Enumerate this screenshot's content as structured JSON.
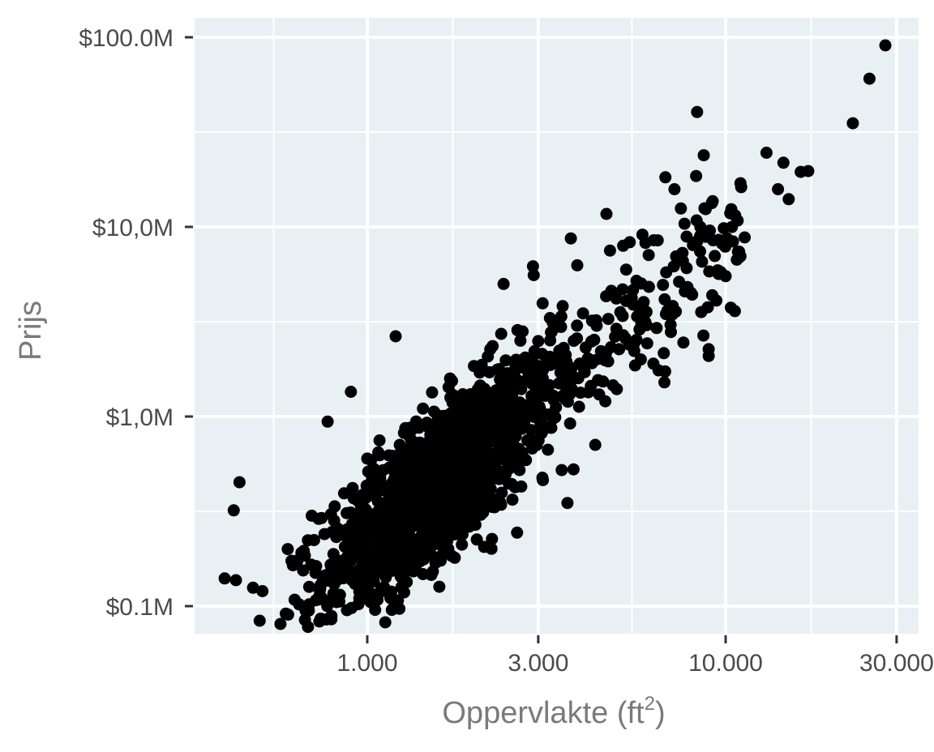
{
  "chart_data": {
    "type": "scatter",
    "title": "",
    "xlabel": "Oppervlakte (ft²)",
    "xlabel_base": "Oppervlakte (ft",
    "xlabel_sup": "2",
    "xlabel_close": ")",
    "ylabel": "Prijs",
    "x_scale": "log10",
    "y_scale": "log10",
    "xlim": [
      330,
      32000
    ],
    "ylim": [
      0.09,
      110
    ],
    "x_ticks": [
      {
        "value": 1000,
        "label": "1.000"
      },
      {
        "value": 3000,
        "label": "3.000"
      },
      {
        "value": 10000,
        "label": "10.000"
      },
      {
        "value": 30000,
        "label": "30.000"
      }
    ],
    "y_ticks": [
      {
        "value": 0.1,
        "label": "$0.1M"
      },
      {
        "value": 1,
        "label": "$1,0M"
      },
      {
        "value": 10,
        "label": "$10,0M"
      },
      {
        "value": 100,
        "label": "$100.0M"
      }
    ],
    "grid": true,
    "legend": null,
    "point_color": "#000000",
    "panel_background": "#e8f0f4",
    "grid_color": "#ffffff",
    "y_units": "million USD",
    "n_points_approx": 1500,
    "trend": "strong positive log-log relationship; price roughly proportional to area^1.3",
    "points_sample": [
      {
        "x": 27900,
        "y": 90.6
      },
      {
        "x": 25200,
        "y": 60.5
      },
      {
        "x": 22650,
        "y": 35.2
      },
      {
        "x": 13000,
        "y": 24.6
      },
      {
        "x": 14500,
        "y": 21.8
      },
      {
        "x": 16200,
        "y": 19.5
      },
      {
        "x": 17000,
        "y": 19.7
      },
      {
        "x": 14000,
        "y": 15.8
      },
      {
        "x": 15000,
        "y": 14.0
      },
      {
        "x": 11000,
        "y": 17.0
      },
      {
        "x": 10300,
        "y": 11.8
      },
      {
        "x": 10800,
        "y": 10.8
      },
      {
        "x": 11300,
        "y": 8.8
      },
      {
        "x": 11000,
        "y": 7.0
      },
      {
        "x": 10000,
        "y": 5.5
      },
      {
        "x": 8500,
        "y": 10.0
      },
      {
        "x": 7200,
        "y": 15.8
      },
      {
        "x": 7500,
        "y": 12.5
      },
      {
        "x": 4650,
        "y": 11.7
      },
      {
        "x": 6300,
        "y": 8.5
      },
      {
        "x": 5400,
        "y": 8.3
      },
      {
        "x": 3700,
        "y": 8.7
      },
      {
        "x": 2900,
        "y": 6.2
      },
      {
        "x": 2400,
        "y": 5.0
      },
      {
        "x": 1200,
        "y": 2.65
      },
      {
        "x": 5800,
        "y": 2.0
      },
      {
        "x": 6500,
        "y": 1.75
      },
      {
        "x": 3620,
        "y": 0.35
      },
      {
        "x": 775,
        "y": 0.94
      },
      {
        "x": 900,
        "y": 1.35
      },
      {
        "x": 440,
        "y": 0.45
      },
      {
        "x": 424,
        "y": 0.32
      },
      {
        "x": 400,
        "y": 0.14
      },
      {
        "x": 430,
        "y": 0.137
      },
      {
        "x": 480,
        "y": 0.125
      },
      {
        "x": 510,
        "y": 0.12
      },
      {
        "x": 820,
        "y": 0.105
      },
      {
        "x": 950,
        "y": 0.11
      },
      {
        "x": 1000,
        "y": 0.6
      },
      {
        "x": 1500,
        "y": 0.8
      },
      {
        "x": 2000,
        "y": 1.0
      },
      {
        "x": 1300,
        "y": 0.35
      },
      {
        "x": 2500,
        "y": 1.5
      },
      {
        "x": 3000,
        "y": 2.5
      },
      {
        "x": 4000,
        "y": 3.5
      },
      {
        "x": 700,
        "y": 0.3
      },
      {
        "x": 600,
        "y": 0.2
      },
      {
        "x": 1100,
        "y": 0.15
      }
    ]
  }
}
